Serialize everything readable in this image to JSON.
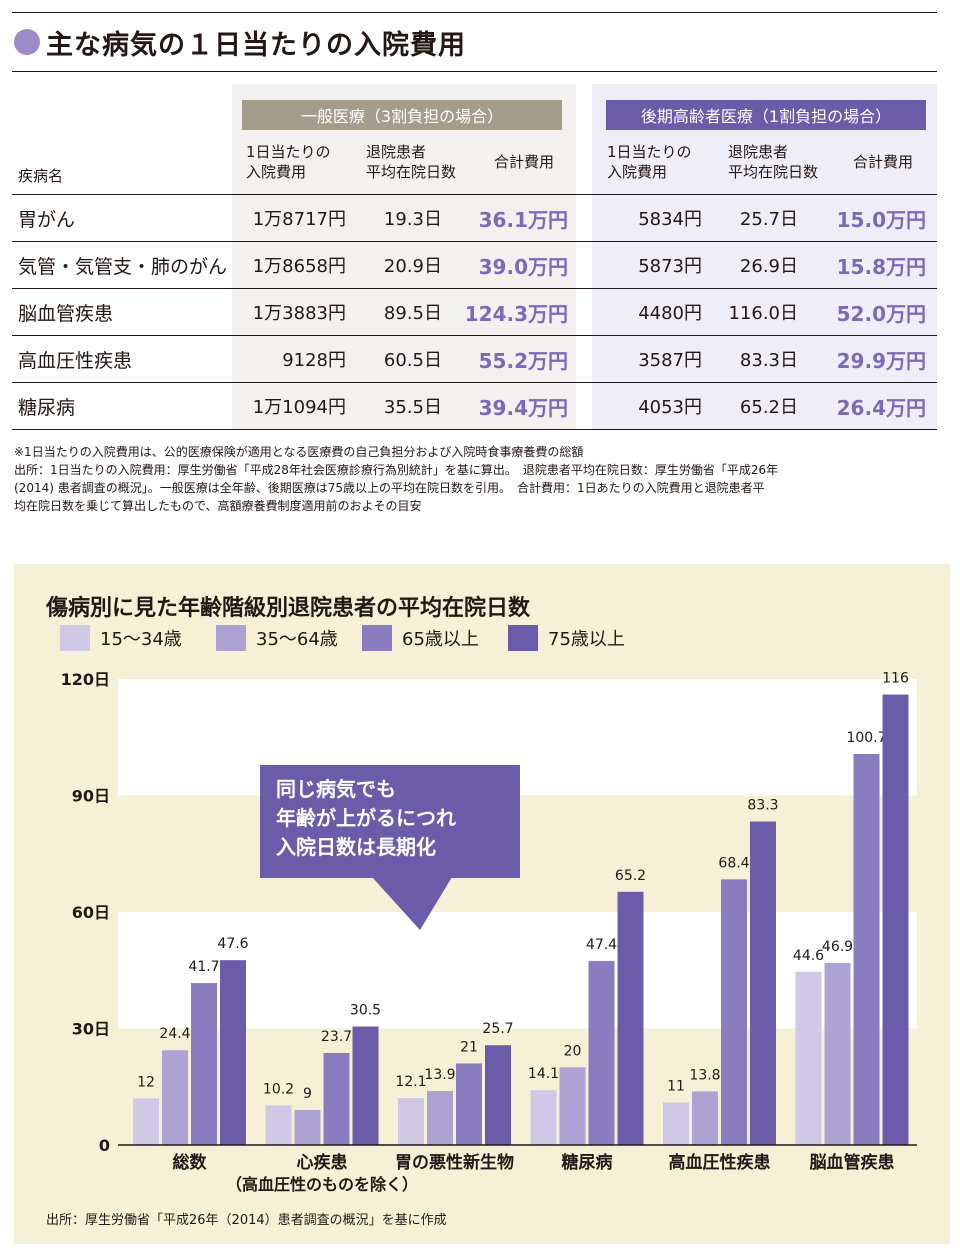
{
  "title": "主な病気の１日当たりの入院費用",
  "table": {
    "groups": [
      {
        "label": "一般医療（3割負担の場合）",
        "color": "#a59c8c"
      },
      {
        "label": "後期高齢者医療（1割負担の場合）",
        "color": "#6a5ca8"
      }
    ],
    "name_header": "疾病名",
    "col_headers": [
      [
        "1日当たりの",
        "入院費用"
      ],
      [
        "退院患者",
        "平均在院日数"
      ],
      [
        "合計費用"
      ],
      [
        "1日当たりの",
        "入院費用"
      ],
      [
        "退院患者",
        "平均在院日数"
      ],
      [
        "合計費用"
      ]
    ],
    "rows": [
      {
        "name": "胃がん",
        "cells": [
          "1万8717円",
          "19.3日",
          "36.1万円",
          "5834円",
          "25.7日",
          "15.0万円"
        ]
      },
      {
        "name": "気管・気管支・肺のがん",
        "cells": [
          "1万8658円",
          "20.9日",
          "39.0万円",
          "5873円",
          "26.9日",
          "15.8万円"
        ]
      },
      {
        "name": "脳血管疾患",
        "cells": [
          "1万3883円",
          "89.5日",
          "124.3万円",
          "4480円",
          "116.0日",
          "52.0万円"
        ]
      },
      {
        "name": "高血圧性疾患",
        "cells": [
          "9128円",
          "60.5日",
          "55.2万円",
          "3587円",
          "83.3日",
          "29.9万円"
        ]
      },
      {
        "name": "糖尿病",
        "cells": [
          "1万1094円",
          "35.5日",
          "39.4万円",
          "4053円",
          "65.2日",
          "26.4万円"
        ]
      }
    ]
  },
  "notes": [
    "※1日当たりの入院費用は、公的医療保険が適用となる医療費の自己負担分および入院時食事療養費の総額",
    "出所：1日当たりの入院費用：厚生労働省「平成28年社会医療診療行為別統計」を基に算出。　退院患者平均在院日数：厚生労働省「平成26年",
    "(2014) 患者調査の概況」。一般医療は全年齢、後期医療は75歳以上の平均在院日数を引用。　合計費用：1日あたりの入院費用と退院患者平",
    "均在院日数を乗じて算出したもので、高額療養費制度適用前のおよその目安"
  ],
  "chart_data": {
    "type": "bar",
    "title": "傷病別に見た年齢階級別退院患者の平均在院日数",
    "categories": [
      "総数",
      "心疾患",
      "胃の悪性新生物",
      "糖尿病",
      "高血圧性疾患",
      "脳血管疾患"
    ],
    "category_sublabels": [
      "",
      "（高血圧性のものを除く）",
      "",
      "",
      "",
      ""
    ],
    "series": [
      {
        "name": "15〜34歳",
        "color": "#cfc9e6",
        "values": [
          12,
          10.2,
          12.1,
          14.1,
          11,
          44.6
        ]
      },
      {
        "name": "35〜64歳",
        "color": "#ada3d3",
        "values": [
          24.4,
          9,
          13.9,
          20,
          13.8,
          46.9
        ]
      },
      {
        "name": "65歳以上",
        "color": "#8a7dbf",
        "values": [
          41.7,
          23.7,
          21,
          47.4,
          68.4,
          100.7
        ]
      },
      {
        "name": "75歳以上",
        "color": "#6a5ca8",
        "values": [
          47.6,
          30.5,
          25.7,
          65.2,
          83.3,
          116
        ]
      }
    ],
    "value_labels": [
      [
        "12",
        "10.2",
        "12.1",
        "14.1",
        "11",
        "44.6"
      ],
      [
        "24.4",
        "9",
        "13.9",
        "20",
        "13.8",
        "46.9"
      ],
      [
        "41.7",
        "23.7",
        "21",
        "47.4",
        "68.4",
        "100.7"
      ],
      [
        "47.6",
        "30.5",
        "25.7",
        "65.2",
        "83.3",
        "116"
      ]
    ],
    "yticks": [
      0,
      30,
      60,
      90,
      120
    ],
    "ytick_labels": [
      "0",
      "30日",
      "60日",
      "90日",
      "120日"
    ],
    "ylim": [
      0,
      120
    ],
    "legend": "top-left",
    "callout": "同じ病気でも\n年齢が上がるにつれ\n入院日数は長期化",
    "source": "出所：厚生労働省「平成26年（2014）患者調査の概況」を基に作成"
  }
}
